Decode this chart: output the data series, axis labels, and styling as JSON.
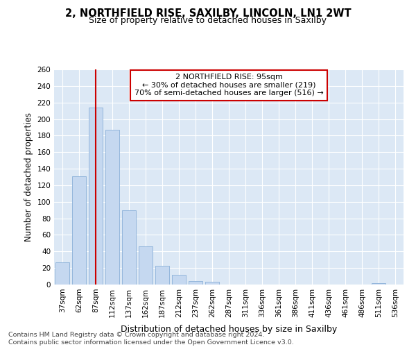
{
  "title1": "2, NORTHFIELD RISE, SAXILBY, LINCOLN, LN1 2WT",
  "title2": "Size of property relative to detached houses in Saxilby",
  "xlabel": "Distribution of detached houses by size in Saxilby",
  "ylabel": "Number of detached properties",
  "footnote": "Contains HM Land Registry data © Crown copyright and database right 2024.\nContains public sector information licensed under the Open Government Licence v3.0.",
  "categories": [
    "37sqm",
    "62sqm",
    "87sqm",
    "112sqm",
    "137sqm",
    "162sqm",
    "187sqm",
    "212sqm",
    "237sqm",
    "262sqm",
    "287sqm",
    "311sqm",
    "336sqm",
    "361sqm",
    "386sqm",
    "411sqm",
    "436sqm",
    "461sqm",
    "486sqm",
    "511sqm",
    "536sqm"
  ],
  "values": [
    27,
    131,
    214,
    187,
    90,
    46,
    23,
    12,
    4,
    3,
    0,
    0,
    0,
    0,
    0,
    0,
    0,
    0,
    0,
    2,
    0
  ],
  "bar_color": "#c5d8f0",
  "bar_edge_color": "#8ab0d8",
  "vline_x": 2,
  "vline_color": "#cc0000",
  "annotation_text": "2 NORTHFIELD RISE: 95sqm\n← 30% of detached houses are smaller (219)\n70% of semi-detached houses are larger (516) →",
  "annotation_box_color": "#ffffff",
  "annotation_box_edge": "#cc0000",
  "bg_color": "#dce8f5",
  "grid_color": "#ffffff",
  "plot_bg": "#dce8f5",
  "ylim": [
    0,
    260
  ],
  "yticks": [
    0,
    20,
    40,
    60,
    80,
    100,
    120,
    140,
    160,
    180,
    200,
    220,
    240,
    260
  ]
}
